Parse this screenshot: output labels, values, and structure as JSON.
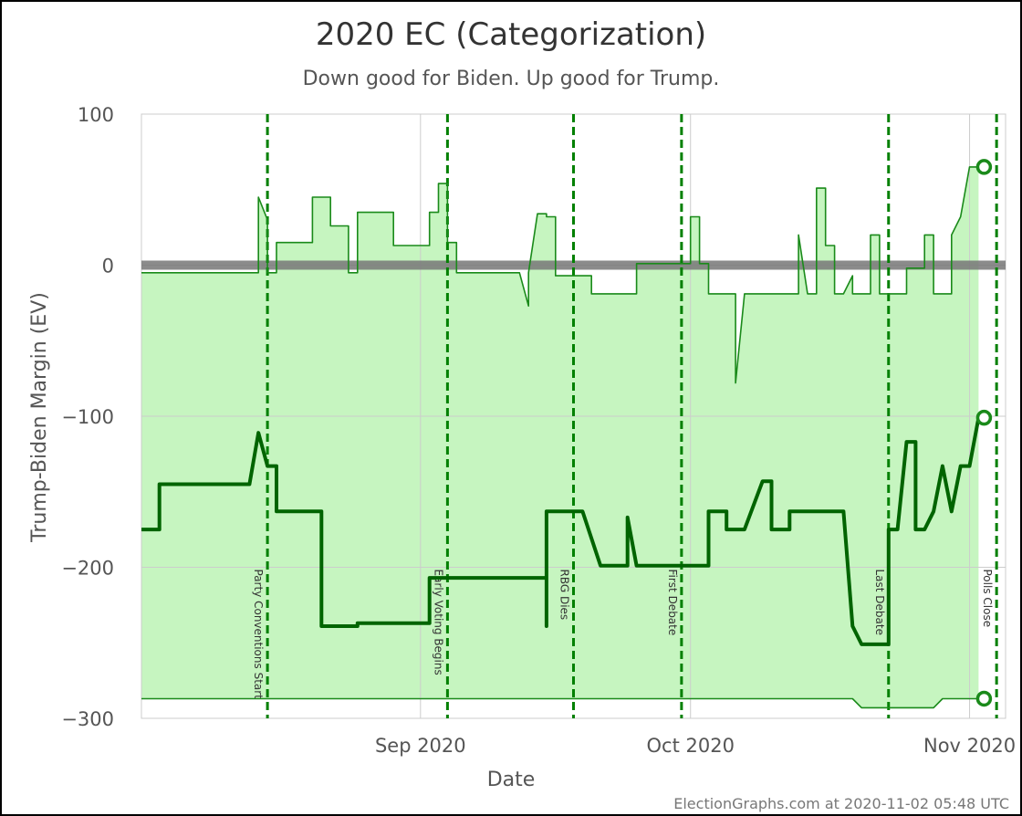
{
  "chart_data": {
    "type": "line",
    "title": "2020 EC (Categorization)",
    "subtitle": "Down good for Biden. Up good for Trump.",
    "xlabel": "Date",
    "ylabel": "Trump-Biden Margin (EV)",
    "credit": "ElectionGraphs.com at 2020-11-02 05:48 UTC",
    "x_range": [
      "2020-08-01",
      "2020-11-05"
    ],
    "ylim": [
      -300,
      100
    ],
    "y_ticks": [
      100,
      0,
      -100,
      -200,
      -300
    ],
    "x_ticks": [
      {
        "date": "2020-09-01",
        "label": "Sep 2020"
      },
      {
        "date": "2020-10-01",
        "label": "Oct 2020"
      },
      {
        "date": "2020-11-01",
        "label": "Nov 2020"
      }
    ],
    "grid": true,
    "tie_line": 0,
    "events": [
      {
        "date": "2020-08-15",
        "label": "Party Conventions Start"
      },
      {
        "date": "2020-09-04",
        "label": "Early Voting Begins"
      },
      {
        "date": "2020-09-18",
        "label": "RBG Dies"
      },
      {
        "date": "2020-09-30",
        "label": "First Debate"
      },
      {
        "date": "2020-10-23",
        "label": "Last Debate"
      },
      {
        "date": "2020-11-04",
        "label": "Polls Close"
      }
    ],
    "series": [
      {
        "role": "upper",
        "color": "#1a8a1a",
        "points": [
          [
            "2020-08-01",
            -5
          ],
          [
            "2020-08-14",
            -5
          ],
          [
            "2020-08-14",
            45
          ],
          [
            "2020-08-15",
            30
          ],
          [
            "2020-08-15",
            -5
          ],
          [
            "2020-08-16",
            -5
          ],
          [
            "2020-08-16",
            15
          ],
          [
            "2020-08-19",
            15
          ],
          [
            "2020-08-20",
            15
          ],
          [
            "2020-08-20",
            45
          ],
          [
            "2020-08-22",
            45
          ],
          [
            "2020-08-22",
            26
          ],
          [
            "2020-08-24",
            26
          ],
          [
            "2020-08-24",
            -5
          ],
          [
            "2020-08-25",
            -5
          ],
          [
            "2020-08-25",
            35
          ],
          [
            "2020-08-29",
            35
          ],
          [
            "2020-08-29",
            13
          ],
          [
            "2020-09-01",
            13
          ],
          [
            "2020-09-02",
            13
          ],
          [
            "2020-09-02",
            35
          ],
          [
            "2020-09-03",
            35
          ],
          [
            "2020-09-03",
            54
          ],
          [
            "2020-09-04",
            54
          ],
          [
            "2020-09-04",
            15
          ],
          [
            "2020-09-05",
            15
          ],
          [
            "2020-09-05",
            -5
          ],
          [
            "2020-09-12",
            -5
          ],
          [
            "2020-09-13",
            -27
          ],
          [
            "2020-09-13",
            -5
          ],
          [
            "2020-09-14",
            34
          ],
          [
            "2020-09-15",
            34
          ],
          [
            "2020-09-15",
            32
          ],
          [
            "2020-09-16",
            32
          ],
          [
            "2020-09-16",
            -7
          ],
          [
            "2020-09-20",
            -7
          ],
          [
            "2020-09-20",
            -19
          ],
          [
            "2020-09-25",
            -19
          ],
          [
            "2020-09-25",
            1
          ],
          [
            "2020-10-01",
            1
          ],
          [
            "2020-10-01",
            32
          ],
          [
            "2020-10-02",
            32
          ],
          [
            "2020-10-02",
            1
          ],
          [
            "2020-10-03",
            1
          ],
          [
            "2020-10-03",
            -19
          ],
          [
            "2020-10-06",
            -19
          ],
          [
            "2020-10-06",
            -78
          ],
          [
            "2020-10-07",
            -19
          ],
          [
            "2020-10-13",
            -19
          ],
          [
            "2020-10-13",
            20
          ],
          [
            "2020-10-14",
            -19
          ],
          [
            "2020-10-15",
            -19
          ],
          [
            "2020-10-15",
            51
          ],
          [
            "2020-10-16",
            51
          ],
          [
            "2020-10-16",
            13
          ],
          [
            "2020-10-17",
            13
          ],
          [
            "2020-10-17",
            -19
          ],
          [
            "2020-10-18",
            -19
          ],
          [
            "2020-10-19",
            -7
          ],
          [
            "2020-10-19",
            -19
          ],
          [
            "2020-10-21",
            -19
          ],
          [
            "2020-10-21",
            20
          ],
          [
            "2020-10-22",
            20
          ],
          [
            "2020-10-22",
            -19
          ],
          [
            "2020-10-25",
            -19
          ],
          [
            "2020-10-25",
            -2
          ],
          [
            "2020-10-27",
            -2
          ],
          [
            "2020-10-27",
            20
          ],
          [
            "2020-10-28",
            20
          ],
          [
            "2020-10-28",
            -19
          ],
          [
            "2020-10-30",
            -19
          ],
          [
            "2020-10-30",
            20
          ],
          [
            "2020-10-31",
            32
          ],
          [
            "2020-11-01",
            65
          ],
          [
            "2020-11-02",
            65
          ]
        ]
      },
      {
        "role": "expected",
        "color": "#006400",
        "points": [
          [
            "2020-08-01",
            -175
          ],
          [
            "2020-08-03",
            -175
          ],
          [
            "2020-08-03",
            -145
          ],
          [
            "2020-08-13",
            -145
          ],
          [
            "2020-08-14",
            -111
          ],
          [
            "2020-08-15",
            -133
          ],
          [
            "2020-08-16",
            -133
          ],
          [
            "2020-08-16",
            -163
          ],
          [
            "2020-08-21",
            -163
          ],
          [
            "2020-08-21",
            -239
          ],
          [
            "2020-08-25",
            -239
          ],
          [
            "2020-08-25",
            -237
          ],
          [
            "2020-09-02",
            -237
          ],
          [
            "2020-09-02",
            -207
          ],
          [
            "2020-09-15",
            -207
          ],
          [
            "2020-09-15",
            -239
          ],
          [
            "2020-09-15",
            -163
          ],
          [
            "2020-09-19",
            -163
          ],
          [
            "2020-09-21",
            -199
          ],
          [
            "2020-09-24",
            -199
          ],
          [
            "2020-09-24",
            -167
          ],
          [
            "2020-09-25",
            -199
          ],
          [
            "2020-10-03",
            -199
          ],
          [
            "2020-10-03",
            -163
          ],
          [
            "2020-10-05",
            -163
          ],
          [
            "2020-10-05",
            -175
          ],
          [
            "2020-10-07",
            -175
          ],
          [
            "2020-10-09",
            -143
          ],
          [
            "2020-10-10",
            -143
          ],
          [
            "2020-10-10",
            -175
          ],
          [
            "2020-10-12",
            -175
          ],
          [
            "2020-10-12",
            -163
          ],
          [
            "2020-10-18",
            -163
          ],
          [
            "2020-10-19",
            -239
          ],
          [
            "2020-10-20",
            -251
          ],
          [
            "2020-10-23",
            -251
          ],
          [
            "2020-10-23",
            -175
          ],
          [
            "2020-10-24",
            -175
          ],
          [
            "2020-10-25",
            -117
          ],
          [
            "2020-10-26",
            -117
          ],
          [
            "2020-10-26",
            -175
          ],
          [
            "2020-10-27",
            -175
          ],
          [
            "2020-10-28",
            -163
          ],
          [
            "2020-10-29",
            -133
          ],
          [
            "2020-10-30",
            -163
          ],
          [
            "2020-10-31",
            -133
          ],
          [
            "2020-11-01",
            -133
          ],
          [
            "2020-11-02",
            -101
          ]
        ]
      },
      {
        "role": "lower",
        "color": "#1a8a1a",
        "points": [
          [
            "2020-08-01",
            -287
          ],
          [
            "2020-10-19",
            -287
          ],
          [
            "2020-10-20",
            -293
          ],
          [
            "2020-10-28",
            -293
          ],
          [
            "2020-10-29",
            -287
          ],
          [
            "2020-11-02",
            -287
          ]
        ]
      }
    ],
    "endpoints": [
      65,
      -101,
      -287
    ],
    "colors": {
      "band_fill": "#c6f5c0",
      "line_green": "#1a8a1a",
      "expected_line": "#006400",
      "event_line": "#008000",
      "tie_band": "#777777",
      "grid": "#cccccc"
    }
  }
}
